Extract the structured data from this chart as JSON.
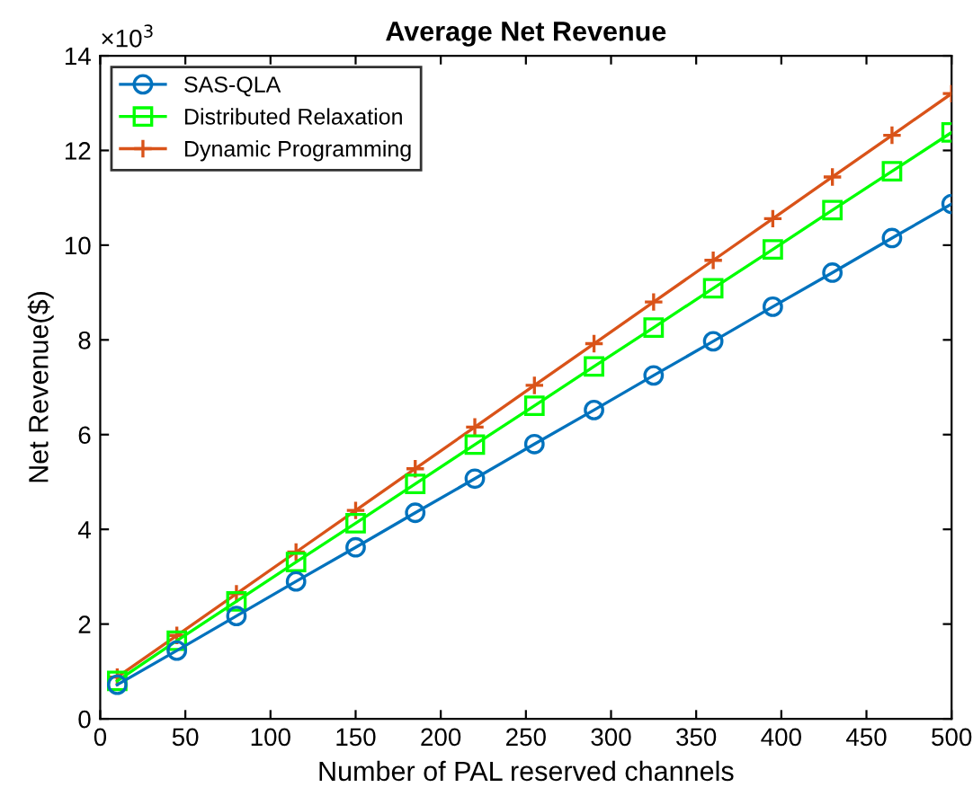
{
  "chart_data": {
    "type": "line",
    "title": "Average Net Revenue",
    "xlabel": "Number of PAL reserved channels",
    "ylabel": "Net Revenue($)",
    "annotations": [
      "×10$^{3}$"
    ],
    "x": [
      10,
      45,
      80,
      115,
      150,
      185,
      220,
      255,
      290,
      325,
      360,
      395,
      430,
      465,
      500
    ],
    "series": [
      {
        "name": "SAS-QLA",
        "color": "#0072bd",
        "marker": "circle",
        "values": [
          0.72,
          1.44,
          2.17,
          2.9,
          3.62,
          4.35,
          5.07,
          5.8,
          6.52,
          7.25,
          7.97,
          8.7,
          9.42,
          10.15,
          10.87
        ]
      },
      {
        "name": "Distributed Relaxation",
        "color": "#00ff00",
        "marker": "square",
        "values": [
          0.8,
          1.65,
          2.48,
          3.31,
          4.13,
          4.96,
          5.79,
          6.61,
          7.44,
          8.26,
          9.09,
          9.91,
          10.74,
          11.56,
          12.38
        ]
      },
      {
        "name": "Dynamic Programming",
        "color": "#d95319",
        "marker": "cross",
        "values": [
          0.88,
          1.76,
          2.64,
          3.52,
          4.4,
          5.28,
          6.16,
          7.04,
          7.92,
          8.8,
          9.68,
          10.56,
          11.44,
          12.32,
          13.2
        ]
      }
    ],
    "xlim": [
      0,
      500
    ],
    "xticks": [
      0,
      50,
      100,
      150,
      200,
      250,
      300,
      350,
      400,
      450,
      500
    ],
    "ylim": [
      0,
      14
    ],
    "yticks": [
      0,
      2,
      4,
      6,
      8,
      10,
      12,
      14
    ],
    "grid": false,
    "legend": "top left",
    "line_style": "solid"
  }
}
